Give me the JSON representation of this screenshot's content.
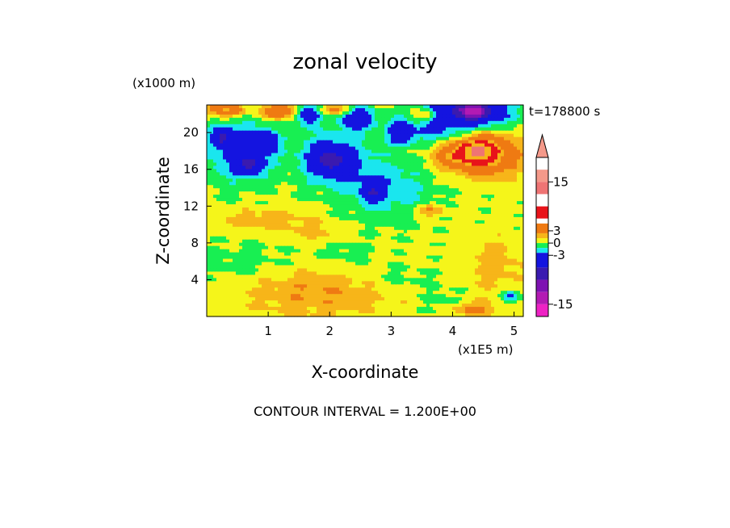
{
  "chart_data": {
    "type": "heatmap",
    "title": "zonal velocity",
    "xlabel": "X-coordinate",
    "ylabel": "Z-coordinate",
    "x_unit": "(x1E5 m)",
    "y_unit": "(x1000 m)",
    "time_label": "t=178800 s",
    "footer": "CONTOUR INTERVAL = 1.200E+00",
    "xlim": [
      0,
      5.15
    ],
    "ylim": [
      0,
      23
    ],
    "x_ticks": [
      {
        "value": 1,
        "label": "1"
      },
      {
        "value": 2,
        "label": "2"
      },
      {
        "value": 3,
        "label": "3"
      },
      {
        "value": 4,
        "label": "4"
      },
      {
        "value": 5,
        "label": "5"
      }
    ],
    "y_ticks": [
      {
        "value": 4,
        "label": "4"
      },
      {
        "value": 8,
        "label": "8"
      },
      {
        "value": 12,
        "label": "12"
      },
      {
        "value": 16,
        "label": "16"
      },
      {
        "value": 20,
        "label": "20"
      }
    ],
    "colorbar": {
      "range": [
        -18,
        21
      ],
      "extend": "max",
      "tick_labels": [
        {
          "value": 15,
          "label": "15"
        },
        {
          "value": 3,
          "label": "3"
        },
        {
          "value": 0,
          "label": "0"
        },
        {
          "value": -3,
          "label": "-3"
        },
        {
          "value": -15,
          "label": "-15"
        }
      ],
      "levels": [
        {
          "from": 15,
          "to": 18,
          "color": "#f4998a"
        },
        {
          "from": 12,
          "to": 15,
          "color": "#ef7474"
        },
        {
          "from": 9,
          "to": 12,
          "color": "#ffffff"
        },
        {
          "from": 6,
          "to": 9,
          "color": "#e8131a"
        },
        {
          "from": 4.8,
          "to": 6,
          "color": "#ffffff"
        },
        {
          "from": 2.4,
          "to": 4.8,
          "color": "#ef7a12"
        },
        {
          "from": 1.2,
          "to": 2.4,
          "color": "#f7b519"
        },
        {
          "from": 0,
          "to": 1.2,
          "color": "#f5f51a"
        },
        {
          "from": -1.2,
          "to": 0,
          "color": "#18ef52"
        },
        {
          "from": -2.4,
          "to": -1.2,
          "color": "#1ae6ee"
        },
        {
          "from": -6,
          "to": -2.4,
          "color": "#1414e0"
        },
        {
          "from": -9,
          "to": -6,
          "color": "#3a1ab0"
        },
        {
          "from": -12,
          "to": -9,
          "color": "#7e12b2"
        },
        {
          "from": -15,
          "to": -12,
          "color": "#b31ab3"
        },
        {
          "from": -18,
          "to": -15,
          "color": "#ee22c4"
        }
      ]
    },
    "field_blobs": [
      {
        "x": 0.5,
        "z": 18.0,
        "rx": 0.55,
        "rz": 3.5,
        "amp": -3.5
      },
      {
        "x": 0.7,
        "z": 16.5,
        "rx": 0.2,
        "rz": 1.0,
        "amp": -5.0
      },
      {
        "x": 0.25,
        "z": 19.5,
        "rx": 0.15,
        "rz": 1.0,
        "amp": -5.0
      },
      {
        "x": 0.95,
        "z": 19.0,
        "rx": 0.2,
        "rz": 1.2,
        "amp": -5.0
      },
      {
        "x": 2.05,
        "z": 17.5,
        "rx": 0.65,
        "rz": 2.5,
        "amp": -3.2
      },
      {
        "x": 2.0,
        "z": 17.0,
        "rx": 0.25,
        "rz": 1.5,
        "amp": -5.0
      },
      {
        "x": 1.65,
        "z": 22.0,
        "rx": 0.2,
        "rz": 1.2,
        "amp": -5.5
      },
      {
        "x": 2.45,
        "z": 21.5,
        "rx": 0.3,
        "rz": 1.3,
        "amp": -5.0
      },
      {
        "x": 3.15,
        "z": 20.0,
        "rx": 0.2,
        "rz": 1.3,
        "amp": -5.0
      },
      {
        "x": 2.95,
        "z": 13.5,
        "rx": 0.75,
        "rz": 3.2,
        "amp": -2.2
      },
      {
        "x": 2.7,
        "z": 13.5,
        "rx": 0.15,
        "rz": 1.0,
        "amp": -4.0
      },
      {
        "x": 4.3,
        "z": 22.2,
        "rx": 0.7,
        "rz": 1.8,
        "amp": -5.5
      },
      {
        "x": 4.35,
        "z": 22.4,
        "rx": 0.25,
        "rz": 0.8,
        "amp": -9.0
      },
      {
        "x": 3.7,
        "z": 20.5,
        "rx": 0.5,
        "rz": 2.0,
        "amp": -2.4
      },
      {
        "x": 4.55,
        "z": 17.6,
        "rx": 0.5,
        "rz": 2.2,
        "amp": 6.0
      },
      {
        "x": 4.4,
        "z": 18.0,
        "rx": 0.25,
        "rz": 1.0,
        "amp": 7.5
      },
      {
        "x": 4.0,
        "z": 17.5,
        "rx": 0.35,
        "rz": 1.3,
        "amp": 3.5
      },
      {
        "x": 0.3,
        "z": 22.5,
        "rx": 0.3,
        "rz": 0.8,
        "amp": 5.0
      },
      {
        "x": 1.2,
        "z": 22.3,
        "rx": 0.35,
        "rz": 0.8,
        "amp": 4.0
      },
      {
        "x": 2.1,
        "z": 22.5,
        "rx": 0.25,
        "rz": 0.6,
        "amp": 3.0
      },
      {
        "x": 3.55,
        "z": 21.8,
        "rx": 0.25,
        "rz": 0.7,
        "amp": 3.5
      },
      {
        "x": 0.9,
        "z": 10.5,
        "rx": 0.8,
        "rz": 1.2,
        "amp": 1.5
      },
      {
        "x": 1.8,
        "z": 9.0,
        "rx": 0.5,
        "rz": 1.2,
        "amp": 1.2
      },
      {
        "x": 3.6,
        "z": 11.5,
        "rx": 0.3,
        "rz": 0.7,
        "amp": 2.5
      },
      {
        "x": 1.8,
        "z": 2.5,
        "rx": 1.2,
        "rz": 2.5,
        "amp": 2.0
      },
      {
        "x": 4.7,
        "z": 5.5,
        "rx": 0.45,
        "rz": 3.0,
        "amp": 1.5
      },
      {
        "x": 4.3,
        "z": 0.8,
        "rx": 0.4,
        "rz": 0.8,
        "amp": 2.6
      },
      {
        "x": 0.6,
        "z": 6.0,
        "rx": 0.7,
        "rz": 2.0,
        "amp": -1.0
      },
      {
        "x": 2.2,
        "z": 7.0,
        "rx": 0.5,
        "rz": 1.5,
        "amp": -0.9
      },
      {
        "x": 3.1,
        "z": 4.2,
        "rx": 0.7,
        "rz": 1.3,
        "amp": -0.9
      },
      {
        "x": 3.85,
        "z": 1.5,
        "rx": 0.35,
        "rz": 1.5,
        "amp": -1.2
      },
      {
        "x": 2.4,
        "z": 14.8,
        "rx": 0.8,
        "rz": 2.0,
        "amp": -1.0
      },
      {
        "x": 4.95,
        "z": 2.2,
        "rx": 0.15,
        "rz": 0.7,
        "amp": -3.5
      }
    ]
  }
}
